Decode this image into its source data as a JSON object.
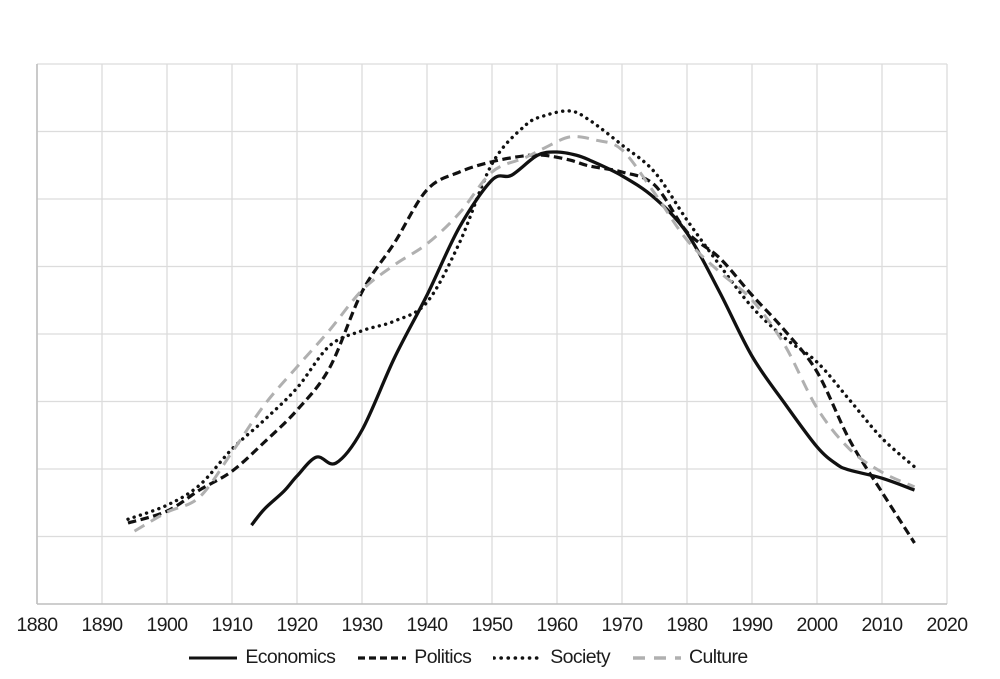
{
  "chart_data": {
    "type": "line",
    "title": "",
    "x_ticks": [
      1880,
      1890,
      1900,
      1910,
      1920,
      1930,
      1940,
      1950,
      1960,
      1970,
      1980,
      1990,
      2000,
      2010,
      2020
    ],
    "x_range": [
      1880,
      2020
    ],
    "y_range": [
      0,
      100
    ],
    "y_gridline_divisions": 8,
    "y_axis_labels_visible": false,
    "grid": true,
    "legend_position": "bottom-center",
    "colors": {
      "black_series": "#111111",
      "gray_series": "#b0b0b0",
      "gridline": "#dcdcdc",
      "axis": "#c0c0c0",
      "text": "#1c1c1c"
    },
    "series": [
      {
        "name": "Economics",
        "line_style": "solid",
        "color": "#111111",
        "points": [
          [
            1913,
            14.6
          ],
          [
            1915,
            17.6
          ],
          [
            1918,
            20.9
          ],
          [
            1920,
            23.7
          ],
          [
            1923,
            27.2
          ],
          [
            1926,
            26.1
          ],
          [
            1930,
            32.2
          ],
          [
            1935,
            45.6
          ],
          [
            1940,
            57.2
          ],
          [
            1945,
            69.8
          ],
          [
            1950,
            78.5
          ],
          [
            1953,
            79.4
          ],
          [
            1957,
            83.1
          ],
          [
            1960,
            83.7
          ],
          [
            1963,
            83.1
          ],
          [
            1965,
            82.2
          ],
          [
            1970,
            79.3
          ],
          [
            1975,
            75.2
          ],
          [
            1980,
            68.7
          ],
          [
            1985,
            57.8
          ],
          [
            1990,
            45.9
          ],
          [
            1995,
            37.2
          ],
          [
            2000,
            29.1
          ],
          [
            2003,
            25.9
          ],
          [
            2005,
            24.8
          ],
          [
            2010,
            23.3
          ],
          [
            2015,
            21.1
          ]
        ]
      },
      {
        "name": "Politics",
        "line_style": "dashed",
        "color": "#111111",
        "points": [
          [
            1894,
            15.0
          ],
          [
            1900,
            17.2
          ],
          [
            1905,
            21.1
          ],
          [
            1910,
            24.6
          ],
          [
            1915,
            30.0
          ],
          [
            1920,
            35.9
          ],
          [
            1925,
            43.7
          ],
          [
            1930,
            57.8
          ],
          [
            1935,
            66.9
          ],
          [
            1940,
            76.7
          ],
          [
            1945,
            80.0
          ],
          [
            1950,
            81.9
          ],
          [
            1955,
            83.0
          ],
          [
            1958,
            83.1
          ],
          [
            1962,
            82.2
          ],
          [
            1965,
            81.1
          ],
          [
            1970,
            80.0
          ],
          [
            1975,
            77.6
          ],
          [
            1980,
            68.9
          ],
          [
            1985,
            64.1
          ],
          [
            1990,
            57.2
          ],
          [
            1995,
            50.7
          ],
          [
            2000,
            43.0
          ],
          [
            2005,
            30.4
          ],
          [
            2010,
            20.7
          ],
          [
            2015,
            11.3
          ]
        ]
      },
      {
        "name": "Society",
        "line_style": "dotted",
        "color": "#111111",
        "points": [
          [
            1894,
            15.7
          ],
          [
            1900,
            18.3
          ],
          [
            1905,
            22.0
          ],
          [
            1910,
            28.7
          ],
          [
            1915,
            34.1
          ],
          [
            1920,
            40.0
          ],
          [
            1925,
            47.8
          ],
          [
            1930,
            50.6
          ],
          [
            1935,
            52.4
          ],
          [
            1940,
            55.9
          ],
          [
            1945,
            66.9
          ],
          [
            1950,
            81.5
          ],
          [
            1955,
            88.5
          ],
          [
            1958,
            90.4
          ],
          [
            1962,
            91.3
          ],
          [
            1965,
            89.6
          ],
          [
            1970,
            85.0
          ],
          [
            1975,
            80.0
          ],
          [
            1980,
            71.1
          ],
          [
            1985,
            62.8
          ],
          [
            1990,
            55.0
          ],
          [
            1995,
            49.3
          ],
          [
            2000,
            44.8
          ],
          [
            2005,
            37.8
          ],
          [
            2010,
            30.7
          ],
          [
            2015,
            25.4
          ]
        ]
      },
      {
        "name": "Culture",
        "line_style": "long-dash",
        "color": "#b0b0b0",
        "points": [
          [
            1895,
            13.5
          ],
          [
            1900,
            17.0
          ],
          [
            1905,
            19.8
          ],
          [
            1910,
            28.1
          ],
          [
            1915,
            36.9
          ],
          [
            1920,
            43.9
          ],
          [
            1925,
            50.7
          ],
          [
            1930,
            58.1
          ],
          [
            1935,
            62.8
          ],
          [
            1940,
            66.7
          ],
          [
            1945,
            72.4
          ],
          [
            1950,
            80.0
          ],
          [
            1955,
            82.6
          ],
          [
            1958,
            84.4
          ],
          [
            1962,
            86.5
          ],
          [
            1966,
            85.9
          ],
          [
            1970,
            84.1
          ],
          [
            1975,
            76.1
          ],
          [
            1980,
            67.4
          ],
          [
            1985,
            61.5
          ],
          [
            1990,
            56.3
          ],
          [
            1995,
            48.0
          ],
          [
            2000,
            36.3
          ],
          [
            2005,
            28.7
          ],
          [
            2010,
            24.4
          ],
          [
            2015,
            21.7
          ]
        ]
      }
    ]
  }
}
